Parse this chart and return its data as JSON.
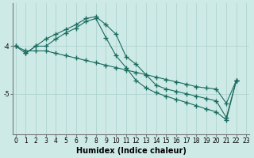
{
  "title": "",
  "xlabel": "Humidex (Indice chaleur)",
  "ylabel": "",
  "bg_color": "#cdeae6",
  "line_color": "#1a6b60",
  "grid_color": "#aacfcc",
  "x_ticks": [
    0,
    1,
    2,
    3,
    4,
    5,
    6,
    7,
    8,
    9,
    10,
    11,
    12,
    13,
    14,
    15,
    16,
    17,
    18,
    19,
    20,
    21,
    22,
    23
  ],
  "y_ticks": [
    -4,
    -5
  ],
  "ylim": [
    -5.85,
    -3.1
  ],
  "xlim": [
    -0.3,
    23.3
  ],
  "line1_x": [
    0,
    1,
    2,
    3,
    4,
    5,
    6,
    7,
    8,
    9,
    10,
    11,
    12,
    13,
    14,
    15,
    16,
    17,
    18,
    19,
    20,
    21,
    22
  ],
  "line1_y": [
    -4.0,
    -4.15,
    -4.0,
    -3.85,
    -3.75,
    -3.65,
    -3.55,
    -3.42,
    -3.38,
    -3.55,
    -3.75,
    -4.22,
    -4.38,
    -4.6,
    -4.82,
    -4.9,
    -4.95,
    -5.0,
    -5.05,
    -5.1,
    -5.15,
    -5.5,
    -4.72
  ],
  "line2_x": [
    0,
    1,
    2,
    3,
    4,
    5,
    6,
    7,
    8,
    9,
    10,
    11,
    12,
    13,
    14,
    15,
    16,
    17,
    18,
    19,
    20,
    21,
    22
  ],
  "line2_y": [
    -4.0,
    -4.1,
    -4.1,
    -4.1,
    -4.15,
    -4.2,
    -4.25,
    -4.3,
    -4.35,
    -4.4,
    -4.45,
    -4.5,
    -4.55,
    -4.6,
    -4.65,
    -4.7,
    -4.75,
    -4.8,
    -4.85,
    -4.88,
    -4.9,
    -5.2,
    -4.72
  ],
  "line3_x": [
    1,
    2,
    3,
    4,
    5,
    6,
    7,
    8,
    9,
    10,
    11,
    12,
    13,
    14,
    15,
    16,
    17,
    18,
    19,
    20,
    21,
    22
  ],
  "line3_y": [
    -4.15,
    -4.0,
    -4.0,
    -3.85,
    -3.72,
    -3.62,
    -3.48,
    -3.42,
    -3.82,
    -4.2,
    -4.45,
    -4.72,
    -4.88,
    -4.98,
    -5.05,
    -5.12,
    -5.18,
    -5.25,
    -5.32,
    -5.38,
    -5.55,
    -4.72
  ],
  "marker": "+",
  "markersize": 4,
  "linewidth": 0.8,
  "label_fontsize": 7,
  "tick_fontsize": 5.5
}
